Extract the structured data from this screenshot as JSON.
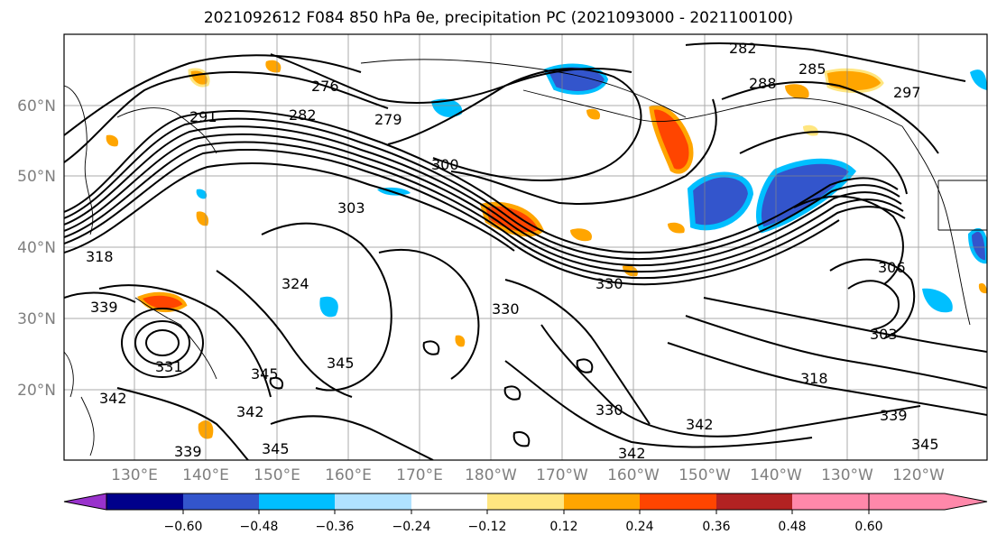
{
  "title": "2021092612 F084 850 hPa θe, precipitation PC (2021093000 - 2021100100)",
  "lat_labels": [
    "60°N",
    "50°N",
    "40°N",
    "30°N",
    "20°N"
  ],
  "lon_labels": [
    "130°E",
    "140°E",
    "150°E",
    "160°E",
    "170°E",
    "180°W",
    "170°W",
    "160°W",
    "150°W",
    "140°W",
    "130°W",
    "120°W"
  ],
  "colorbar": {
    "ticks": [
      "−0.60",
      "−0.48",
      "−0.36",
      "−0.24",
      "−0.12",
      "0.12",
      "0.24",
      "0.36",
      "0.48",
      "0.60"
    ],
    "colors": [
      "#9932cc",
      "#00008b",
      "#3355cc",
      "#00bfff",
      "#b0e2ff",
      "#ffffff",
      "#ffe680",
      "#ffa500",
      "#ff4500",
      "#b22222",
      "#ff88aa"
    ]
  },
  "contour_labels": [
    "282",
    "276",
    "291",
    "282",
    "279",
    "288",
    "285",
    "297",
    "300",
    "303",
    "318",
    "324",
    "330",
    "330",
    "339",
    "331",
    "345",
    "345",
    "342",
    "342",
    "339",
    "345",
    "330",
    "342",
    "342",
    "318",
    "303",
    "306",
    "339",
    "345"
  ]
}
